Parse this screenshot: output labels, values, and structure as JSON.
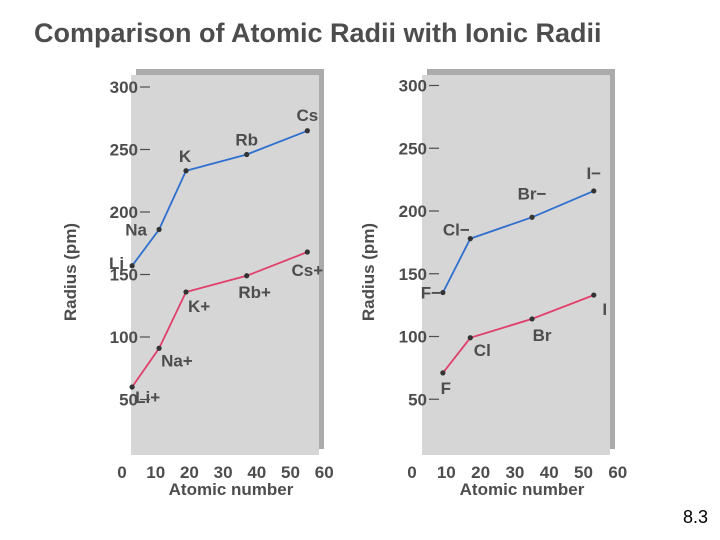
{
  "title": "Comparison of Atomic Radii with Ionic Radii",
  "slide_number": "8.3",
  "colors": {
    "panel_fill": "#d6d6d6",
    "panel_shadow": "#ababab",
    "atomic_line": "#2f6fcf",
    "ionic_line": "#e0406a",
    "text": "#4d4d4d"
  },
  "chart_data": [
    {
      "type": "line",
      "xlabel": "Atomic number",
      "ylabel": "Radius (pm)",
      "xlim": [
        0,
        60
      ],
      "ylim": [
        0,
        300
      ],
      "x_ticks": [
        "0",
        "10",
        "20",
        "30",
        "40",
        "50",
        "60"
      ],
      "y_ticks": [
        "50",
        "100",
        "150",
        "200",
        "250",
        "300"
      ],
      "grid": false,
      "series": [
        {
          "color": "#2f6fcf",
          "points": [
            {
              "x": 3,
              "y": 157,
              "label": "Li"
            },
            {
              "x": 11,
              "y": 186,
              "label": "Na"
            },
            {
              "x": 19,
              "y": 233,
              "label": "K"
            },
            {
              "x": 37,
              "y": 246,
              "label": "Rb"
            },
            {
              "x": 55,
              "y": 265,
              "label": "Cs"
            }
          ]
        },
        {
          "color": "#e0406a",
          "points": [
            {
              "x": 3,
              "y": 60,
              "label": "Li+"
            },
            {
              "x": 11,
              "y": 91,
              "label": "Na+"
            },
            {
              "x": 19,
              "y": 136,
              "label": "K+"
            },
            {
              "x": 37,
              "y": 149,
              "label": "Rb+"
            },
            {
              "x": 55,
              "y": 168,
              "label": "Cs+"
            }
          ]
        }
      ]
    },
    {
      "type": "line",
      "xlabel": "Atomic number",
      "ylabel": "Radius (pm)",
      "xlim": [
        0,
        60
      ],
      "ylim": [
        0,
        300
      ],
      "x_ticks": [
        "0",
        "10",
        "20",
        "30",
        "40",
        "50",
        "60"
      ],
      "y_ticks": [
        "50",
        "100",
        "150",
        "200",
        "250",
        "300"
      ],
      "grid": false,
      "series": [
        {
          "color": "#2f6fcf",
          "points": [
            {
              "x": 9,
              "y": 135,
              "label": "F−"
            },
            {
              "x": 17,
              "y": 178,
              "label": "Cl−"
            },
            {
              "x": 35,
              "y": 195,
              "label": "Br−"
            },
            {
              "x": 53,
              "y": 216,
              "label": "I−"
            }
          ]
        },
        {
          "color": "#e0406a",
          "points": [
            {
              "x": 9,
              "y": 71,
              "label": "F"
            },
            {
              "x": 17,
              "y": 99,
              "label": "Cl"
            },
            {
              "x": 35,
              "y": 114,
              "label": "Br"
            },
            {
              "x": 53,
              "y": 133,
              "label": "I"
            }
          ]
        }
      ]
    }
  ]
}
